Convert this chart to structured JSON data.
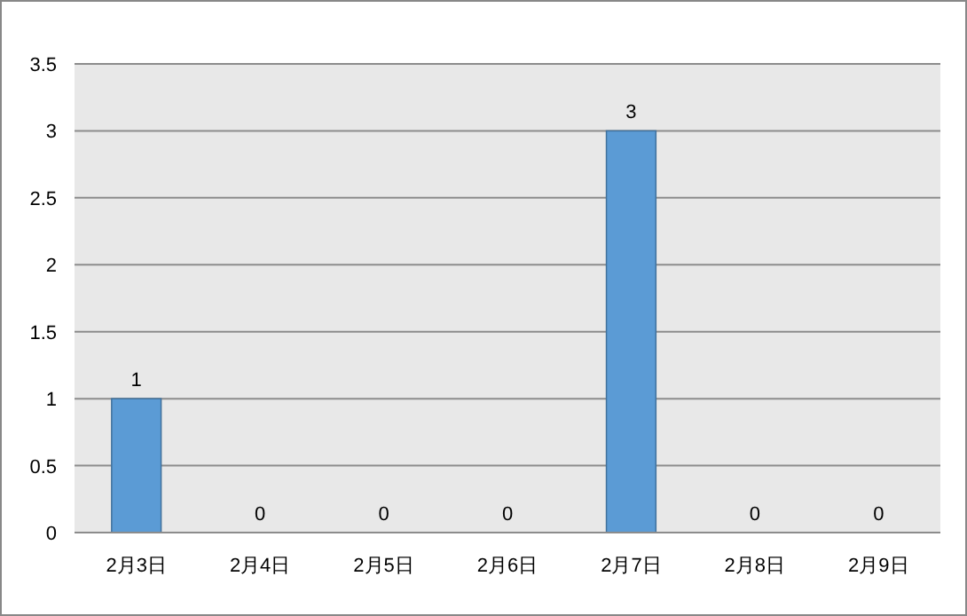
{
  "chart_data": {
    "type": "bar",
    "categories": [
      "2月3日",
      "2月4日",
      "2月5日",
      "2月6日",
      "2月7日",
      "2月8日",
      "2月9日"
    ],
    "values": [
      1,
      0,
      0,
      0,
      3,
      0,
      0
    ],
    "color": "#5b9bd5",
    "ylim": [
      0,
      3.5
    ],
    "yticks": [
      0,
      0.5,
      1,
      1.5,
      2,
      2.5,
      3,
      3.5
    ],
    "grid": "y",
    "data_labels": true
  }
}
